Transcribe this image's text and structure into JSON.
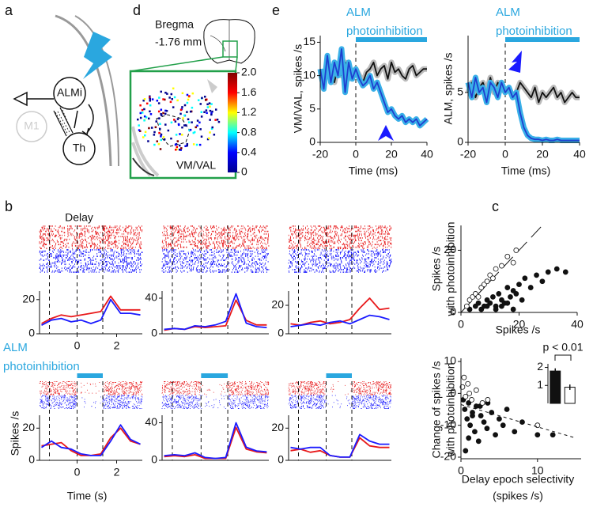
{
  "panel_labels": [
    "a",
    "d",
    "e",
    "b",
    "c"
  ],
  "diagram": {
    "nodes": [
      "ALMi",
      "M1",
      "Th"
    ]
  },
  "slice": {
    "bregma": "Bregma",
    "level": "-1.76 mm",
    "region": "VM/VAL"
  },
  "chart_data": [
    {
      "type": "colorbar",
      "colormap": [
        "#00008f",
        "#0000ff",
        "#00ffff",
        "#ffff00",
        "#ff0000",
        "#800000"
      ],
      "ylim": [
        0,
        2
      ],
      "yticks": [
        0,
        0.4,
        0.8,
        1.2,
        1.6,
        {
          "value": 2,
          "label": "2.0"
        }
      ]
    },
    {
      "type": "line",
      "ylabel": "VM/VAL, spikes /s",
      "xlabel": "Time (ms)",
      "annotation": [
        "ALM",
        "photoinhibition"
      ],
      "stim": [
        0,
        40
      ],
      "epoch_lines": [
        0
      ],
      "x": [
        -20,
        -18,
        -16,
        -14,
        -12,
        -10,
        -8,
        -6,
        -4,
        -2,
        0,
        2,
        4,
        6,
        8,
        10,
        12,
        14,
        16,
        18,
        20,
        22,
        24,
        26,
        28,
        30,
        32,
        34,
        36,
        38,
        40
      ],
      "xlim": [
        -20,
        40
      ],
      "xticks": [
        -20,
        0,
        20,
        40
      ],
      "ylim": [
        0,
        16
      ],
      "yticks": [
        0,
        5,
        10,
        15
      ],
      "series": [
        {
          "color": "#111111",
          "band_color": "#bbbbbb",
          "values": [
            10,
            9.5,
            11,
            10.5,
            9,
            11.5,
            10,
            12,
            9.5,
            10.5,
            11,
            10,
            9,
            10.5,
            11,
            12,
            10,
            11,
            11.5,
            9.5,
            12,
            10.5,
            11,
            10,
            9.5,
            11,
            11.5,
            10,
            10.5,
            11,
            11
          ]
        },
        {
          "color": "#1f3fcf",
          "band_color": "#3ab0e8",
          "values": [
            11,
            8,
            13,
            9,
            12,
            10,
            14,
            7.5,
            12,
            9.5,
            11,
            9.5,
            8.5,
            9,
            10,
            8,
            9,
            7.5,
            6,
            4.5,
            5,
            4,
            3.5,
            4,
            3,
            3.5,
            3,
            3.5,
            2.5,
            3,
            3.5
          ]
        }
      ]
    },
    {
      "type": "line",
      "ylabel": "ALM, spikes /s",
      "xlabel": "Time (ms)",
      "annotation": [
        "ALM",
        "photoinhibition"
      ],
      "stim": [
        0,
        40
      ],
      "epoch_lines": [
        0
      ],
      "x": [
        -20,
        -18,
        -16,
        -14,
        -12,
        -10,
        -8,
        -6,
        -4,
        -2,
        0,
        2,
        4,
        6,
        8,
        10,
        12,
        14,
        16,
        18,
        20,
        22,
        24,
        26,
        28,
        30,
        32,
        34,
        36,
        38,
        40
      ],
      "xlim": [
        -20,
        40
      ],
      "xticks": [
        -20,
        0,
        20,
        40
      ],
      "ylim": [
        0,
        10.7
      ],
      "yticks": [
        0,
        5
      ],
      "series": [
        {
          "color": "#111111",
          "band_color": "#bbbbbb",
          "values": [
            5,
            6,
            4.5,
            5.5,
            6,
            5,
            6.5,
            5,
            6,
            5.5,
            5,
            5.5,
            4.5,
            5,
            6,
            5.5,
            5,
            4.5,
            5.5,
            4,
            5,
            4.5,
            5,
            5.5,
            4.5,
            5,
            4,
            4.5,
            5,
            4.5,
            4.5
          ]
        },
        {
          "color": "#1f3fcf",
          "band_color": "#3ab0e8",
          "values": [
            6,
            4.5,
            6.5,
            5,
            5.5,
            4,
            6,
            5.5,
            4.5,
            6,
            5,
            5.5,
            4.5,
            5,
            3,
            1.5,
            0.7,
            0.4,
            0.3,
            0.3,
            0.2,
            0.3,
            0.2,
            0.2,
            0.3,
            0.2,
            0.2,
            0.2,
            0.2,
            0.2,
            0.2
          ]
        }
      ]
    },
    {
      "type": "line",
      "title": "Delay",
      "raster": true,
      "epoch_lines": [
        -1.4,
        0,
        1.3
      ],
      "x": [
        -1.8,
        -1.3,
        -0.8,
        -0.3,
        0.2,
        0.7,
        1.2,
        1.7,
        2.2,
        2.7,
        3.2
      ],
      "xlim": [
        -1.9,
        3.3
      ],
      "xticks": [
        0,
        2
      ],
      "ylim": [
        0,
        25
      ],
      "yticks": [
        0,
        20
      ],
      "series": [
        {
          "color": "#e8191b",
          "values": [
            6,
            9,
            11,
            10,
            11,
            12,
            13,
            22,
            14,
            14,
            14
          ]
        },
        {
          "color": "#1a1aff",
          "values": [
            5,
            8,
            9,
            7,
            8,
            6,
            8,
            20,
            12,
            12,
            11
          ]
        }
      ]
    },
    {
      "type": "line",
      "raster": true,
      "epoch_lines": [
        -1.4,
        0,
        1.3
      ],
      "x": [
        -1.8,
        -1.3,
        -0.8,
        -0.3,
        0.2,
        0.7,
        1.2,
        1.7,
        2.2,
        2.7,
        3.2
      ],
      "xlim": [
        -1.9,
        3.3
      ],
      "ylim": [
        0,
        48
      ],
      "yticks": [
        0,
        40
      ],
      "series": [
        {
          "color": "#e8191b",
          "values": [
            4,
            6,
            5,
            8,
            7,
            8,
            9,
            38,
            15,
            10,
            10
          ]
        },
        {
          "color": "#1a1aff",
          "values": [
            5,
            6,
            5,
            9,
            8,
            10,
            14,
            45,
            12,
            8,
            7
          ]
        }
      ]
    },
    {
      "type": "line",
      "raster": true,
      "epoch_lines": [
        -1.4,
        0,
        1.3
      ],
      "x": [
        -1.8,
        -1.3,
        -0.8,
        -0.3,
        0.2,
        0.7,
        1.2,
        1.7,
        2.2,
        2.7,
        3.2
      ],
      "xlim": [
        -1.9,
        3.3
      ],
      "ylim": [
        0,
        30
      ],
      "yticks": [
        0,
        20
      ],
      "series": [
        {
          "color": "#e8191b",
          "values": [
            7,
            6,
            8,
            9,
            7,
            8,
            10,
            18,
            25,
            17,
            18
          ]
        },
        {
          "color": "#1a1aff",
          "values": [
            5,
            6,
            7,
            6,
            8,
            9,
            7,
            10,
            13,
            12,
            10
          ]
        }
      ]
    },
    {
      "type": "line",
      "ylabel": "Spikes /s",
      "xlabel": "Time (s)",
      "annotation": [
        "ALM",
        "photoinhibition"
      ],
      "raster": true,
      "stim": [
        0,
        1.3
      ],
      "epoch_lines": [
        -1.4,
        0,
        1.3
      ],
      "x": [
        -1.8,
        -1.3,
        -0.8,
        -0.3,
        0.2,
        0.7,
        1.2,
        1.7,
        2.2,
        2.7,
        3.2
      ],
      "xlim": [
        -1.9,
        3.3
      ],
      "xticks": [
        0,
        2
      ],
      "ylim": [
        0,
        28
      ],
      "yticks": [
        0,
        20
      ],
      "series": [
        {
          "color": "#e8191b",
          "values": [
            9,
            10,
            11,
            6,
            3,
            3,
            4,
            14,
            20,
            12,
            10
          ]
        },
        {
          "color": "#1a1aff",
          "values": [
            8,
            12,
            8,
            7,
            4,
            3,
            3,
            12,
            22,
            13,
            10
          ]
        }
      ]
    },
    {
      "type": "line",
      "raster": true,
      "stim": [
        0,
        1.3
      ],
      "epoch_lines": [
        -1.4,
        0,
        1.3
      ],
      "x": [
        -1.8,
        -1.3,
        -0.8,
        -0.3,
        0.2,
        0.7,
        1.2,
        1.7,
        2.2,
        2.7,
        3.2
      ],
      "xlim": [
        -1.9,
        3.3
      ],
      "ylim": [
        0,
        48
      ],
      "yticks": [
        0,
        40
      ],
      "series": [
        {
          "color": "#e8191b",
          "values": [
            4,
            5,
            4,
            6,
            2,
            2,
            2,
            35,
            12,
            9,
            8
          ]
        },
        {
          "color": "#1a1aff",
          "values": [
            5,
            6,
            5,
            8,
            3,
            2,
            3,
            40,
            14,
            10,
            9
          ]
        }
      ]
    },
    {
      "type": "line",
      "raster": true,
      "stim": [
        0,
        1.3
      ],
      "epoch_lines": [
        -1.4,
        0,
        1.3
      ],
      "x": [
        -1.8,
        -1.3,
        -0.8,
        -0.3,
        0.2,
        0.7,
        1.2,
        1.7,
        2.2,
        2.7,
        3.2
      ],
      "xlim": [
        -1.9,
        3.3
      ],
      "ylim": [
        0,
        28
      ],
      "yticks": [
        0,
        20
      ],
      "series": [
        {
          "color": "#e8191b",
          "values": [
            6,
            7,
            5,
            6,
            3,
            2,
            2,
            14,
            9,
            8,
            8
          ]
        },
        {
          "color": "#1a1aff",
          "values": [
            8,
            7,
            8,
            8,
            3,
            2,
            2,
            16,
            12,
            10,
            10
          ]
        }
      ]
    },
    {
      "type": "scatter",
      "xlabel": "Spikes /s",
      "ylabel": [
        "Spikes /s",
        "with photoinhibition"
      ],
      "reference_line": "identity",
      "xlim": [
        0,
        40
      ],
      "xticks": [
        0,
        20,
        40
      ],
      "ylim": [
        0,
        28
      ],
      "yticks": [
        0,
        20
      ],
      "series": [
        {
          "marker": "filled",
          "x": [
            3,
            5,
            6,
            8,
            9,
            10,
            11,
            12,
            13,
            14,
            15,
            16,
            17,
            18,
            19,
            20,
            22,
            24,
            26,
            28,
            30,
            33,
            36,
            7,
            9,
            12,
            14,
            16,
            18,
            21
          ],
          "y": [
            1,
            2,
            3,
            2,
            4,
            3,
            5,
            2,
            6,
            4,
            3,
            8,
            5,
            7,
            6,
            9,
            11,
            8,
            12,
            10,
            13,
            14,
            13,
            1,
            2,
            1,
            2,
            3,
            1,
            4
          ]
        },
        {
          "marker": "open",
          "x": [
            2,
            3,
            4,
            5,
            6,
            7,
            8,
            9,
            10,
            11,
            12,
            14,
            16,
            18,
            19
          ],
          "y": [
            2,
            4,
            5,
            6,
            5,
            8,
            9,
            10,
            12,
            11,
            14,
            15,
            18,
            16,
            20
          ]
        }
      ]
    },
    {
      "type": "scatter",
      "xlabel": [
        "Delay epoch selectivity",
        "(spikes /s)"
      ],
      "ylabel": [
        "Change of spikes /s",
        "with photoinhibition"
      ],
      "xlim": [
        0,
        15.7
      ],
      "xticks": [
        0,
        10
      ],
      "ylim": [
        -20.5,
        11
      ],
      "yticks": [
        -20,
        -10,
        0,
        10
      ],
      "series": [
        {
          "marker": "filled",
          "x": [
            0.3,
            0.5,
            0.8,
            1,
            1.2,
            1.5,
            1.8,
            2,
            2.3,
            2.6,
            3,
            3.4,
            4,
            4.5,
            5,
            5.5,
            6,
            7,
            8,
            10,
            12,
            0.6,
            1,
            1.5,
            2.5,
            3.5
          ],
          "y": [
            -2,
            -5,
            -8,
            -3,
            -10,
            -6,
            -12,
            -4,
            -15,
            -7,
            -9,
            -11,
            -6,
            -13,
            -8,
            -10,
            -5,
            -12,
            -9,
            -13,
            -13,
            -18,
            -14,
            -7,
            -4,
            -3
          ]
        },
        {
          "marker": "open",
          "x": [
            0.2,
            0.4,
            0.6,
            0.9,
            1.1,
            1.4,
            2,
            2.8,
            3.5,
            10
          ],
          "y": [
            2,
            5,
            -1,
            3,
            0,
            -2,
            1,
            -3,
            -2,
            -10
          ]
        },
        {
          "marker": "dashed",
          "x": [
            0,
            15
          ],
          "y": [
            -3.5,
            -14
          ]
        }
      ]
    },
    {
      "type": "bar",
      "annotation": [
        "p < 0.01"
      ],
      "values": [
        1.8,
        0.9
      ],
      "errors": [
        0.15,
        0.15
      ],
      "colors": [
        "#111111",
        "#ffffff"
      ],
      "ylim": [
        0,
        2.2
      ],
      "yticks": [
        1,
        2
      ]
    }
  ]
}
